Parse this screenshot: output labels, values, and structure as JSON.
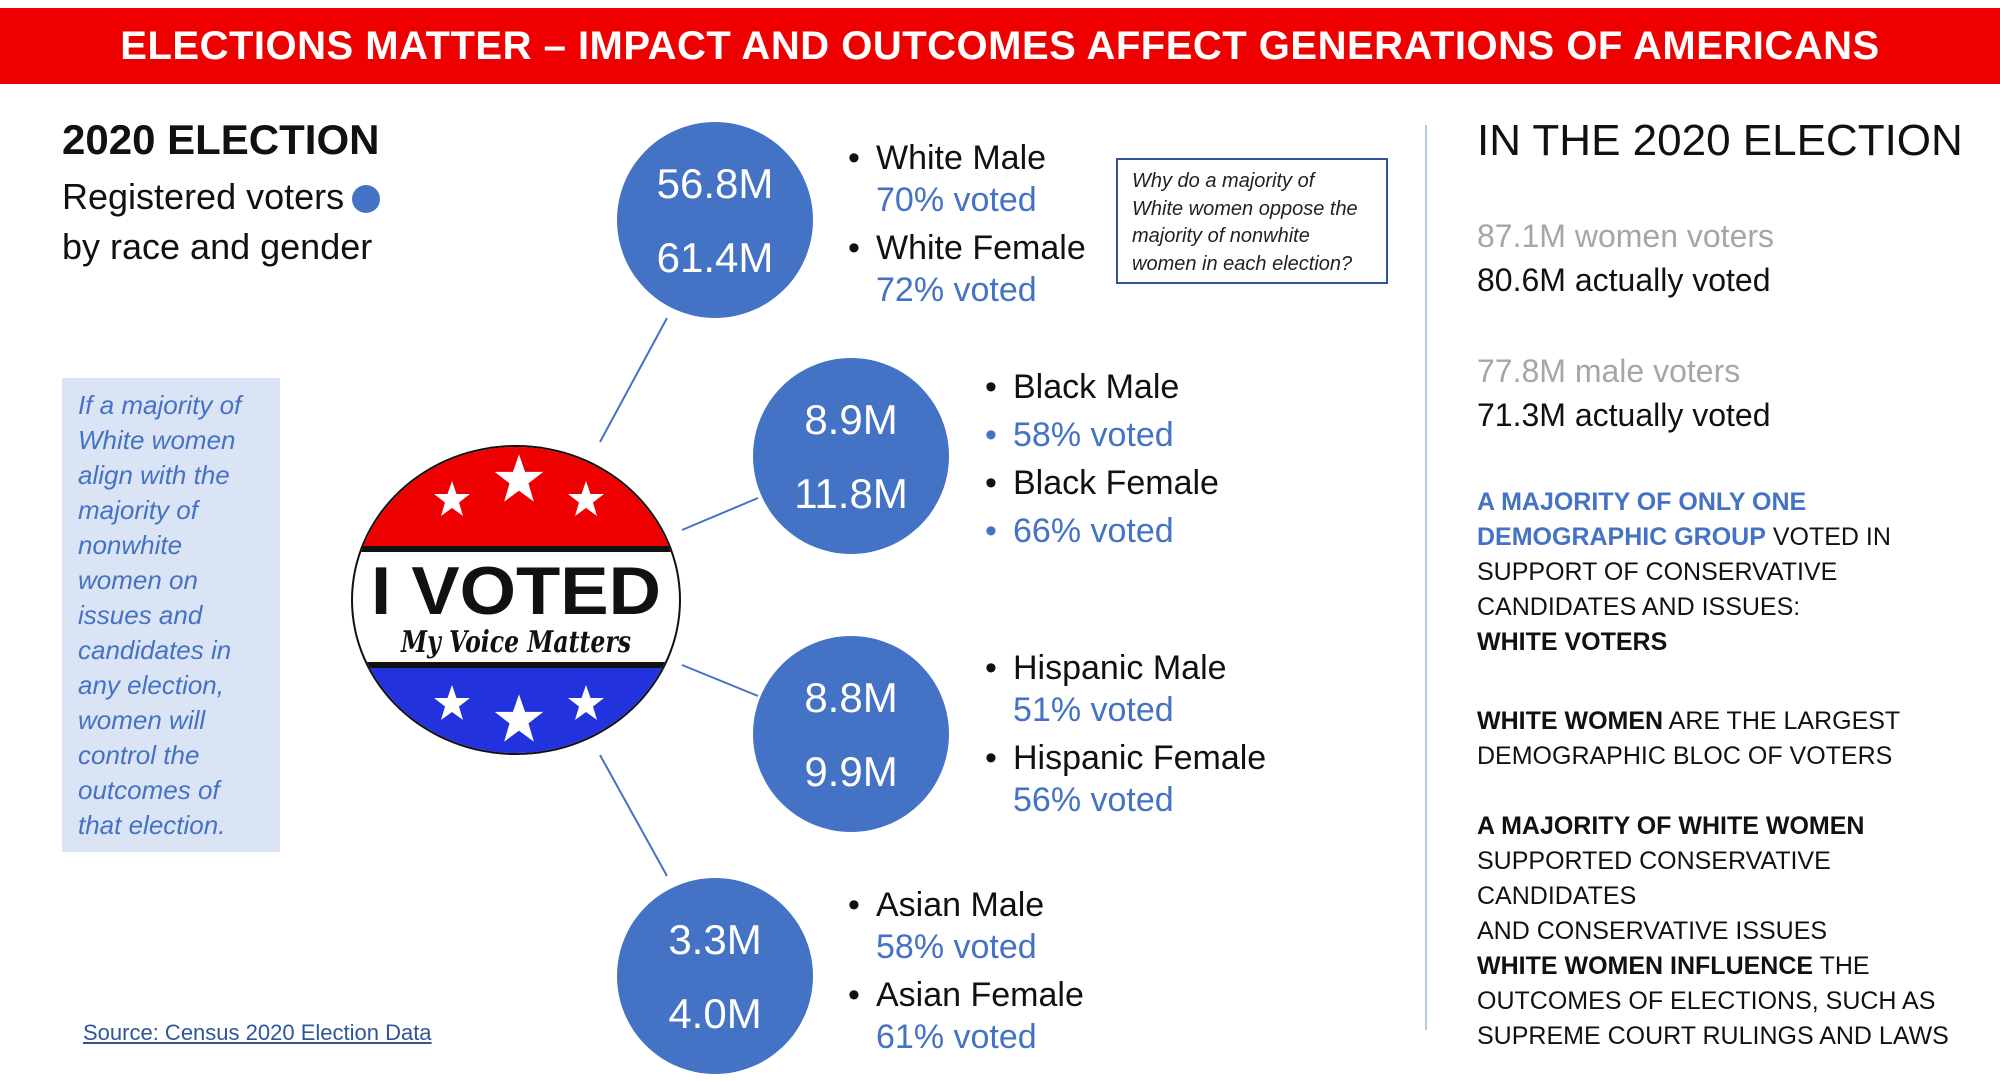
{
  "banner": {
    "title": "ELECTIONS MATTER – IMPACT AND OUTCOMES AFFECT GENERATIONS OF AMERICANS"
  },
  "left": {
    "heading": "2020 ELECTION",
    "sub1": "Registered voters",
    "sub2": "by race and gender",
    "callout": [
      "If a majority of",
      "White women",
      "align with the",
      "majority of",
      "nonwhite",
      "women on",
      "issues and",
      "candidates in",
      "any election,",
      "women will",
      "control the",
      "outcomes of",
      "that election."
    ],
    "source": "Source: Census 2020 Election Data"
  },
  "badge": {
    "title": "I VOTED",
    "tagline": "My Voice Matters"
  },
  "groups": [
    {
      "male_count": "56.8M",
      "female_count": "61.4M",
      "male_label": "White Male",
      "male_pct": "70% voted",
      "female_label": "White Female",
      "female_pct": "72% voted"
    },
    {
      "male_count": "8.9M",
      "female_count": "11.8M",
      "male_label": "Black Male",
      "male_pct": "58% voted",
      "female_label": "Black Female",
      "female_pct": "66% voted"
    },
    {
      "male_count": "8.8M",
      "female_count": "9.9M",
      "male_label": "Hispanic Male",
      "male_pct": "51% voted",
      "female_label": "Hispanic Female",
      "female_pct": "56% voted"
    },
    {
      "male_count": "3.3M",
      "female_count": "4.0M",
      "male_label": "Asian Male",
      "male_pct": "58% voted",
      "female_label": "Asian Female",
      "female_pct": "61% voted"
    }
  ],
  "question": [
    "Why do a majority of",
    "White women oppose the",
    "majority of nonwhite",
    "women in each election?"
  ],
  "right": {
    "heading": "IN THE 2020 ELECTION",
    "women_registered": "87.1M women voters",
    "women_voted": "80.6M actually voted",
    "men_registered": "77.8M male voters",
    "men_voted": "71.3M actually voted",
    "p1_a": "A MAJORITY OF ONLY ONE",
    "p1_b": "DEMOGRAPHIC GROUP",
    "p1_c": " VOTED IN",
    "p1_d": "SUPPORT OF CONSERVATIVE",
    "p1_e": "CANDIDATES AND ISSUES:",
    "p1_f": "WHITE VOTERS",
    "p2_a": "WHITE WOMEN",
    "p2_b": " ARE THE LARGEST",
    "p2_c": "DEMOGRAPHIC BLOC OF VOTERS",
    "p3_a": "A MAJORITY OF WHITE WOMEN",
    "p3_b": "SUPPORTED CONSERVATIVE CANDIDATES",
    "p3_c": "AND CONSERVATIVE ISSUES",
    "p4_a": "WHITE WOMEN INFLUENCE",
    "p4_b": " THE",
    "p4_c": "OUTCOMES OF ELECTIONS, SUCH AS",
    "p4_d": "SUPREME COURT RULINGS AND LAWS"
  },
  "colors": {
    "banner": "#ee0000",
    "accent": "#4472c4",
    "callout_bg": "#dbe4f4",
    "grey": "#a6a6a6"
  }
}
